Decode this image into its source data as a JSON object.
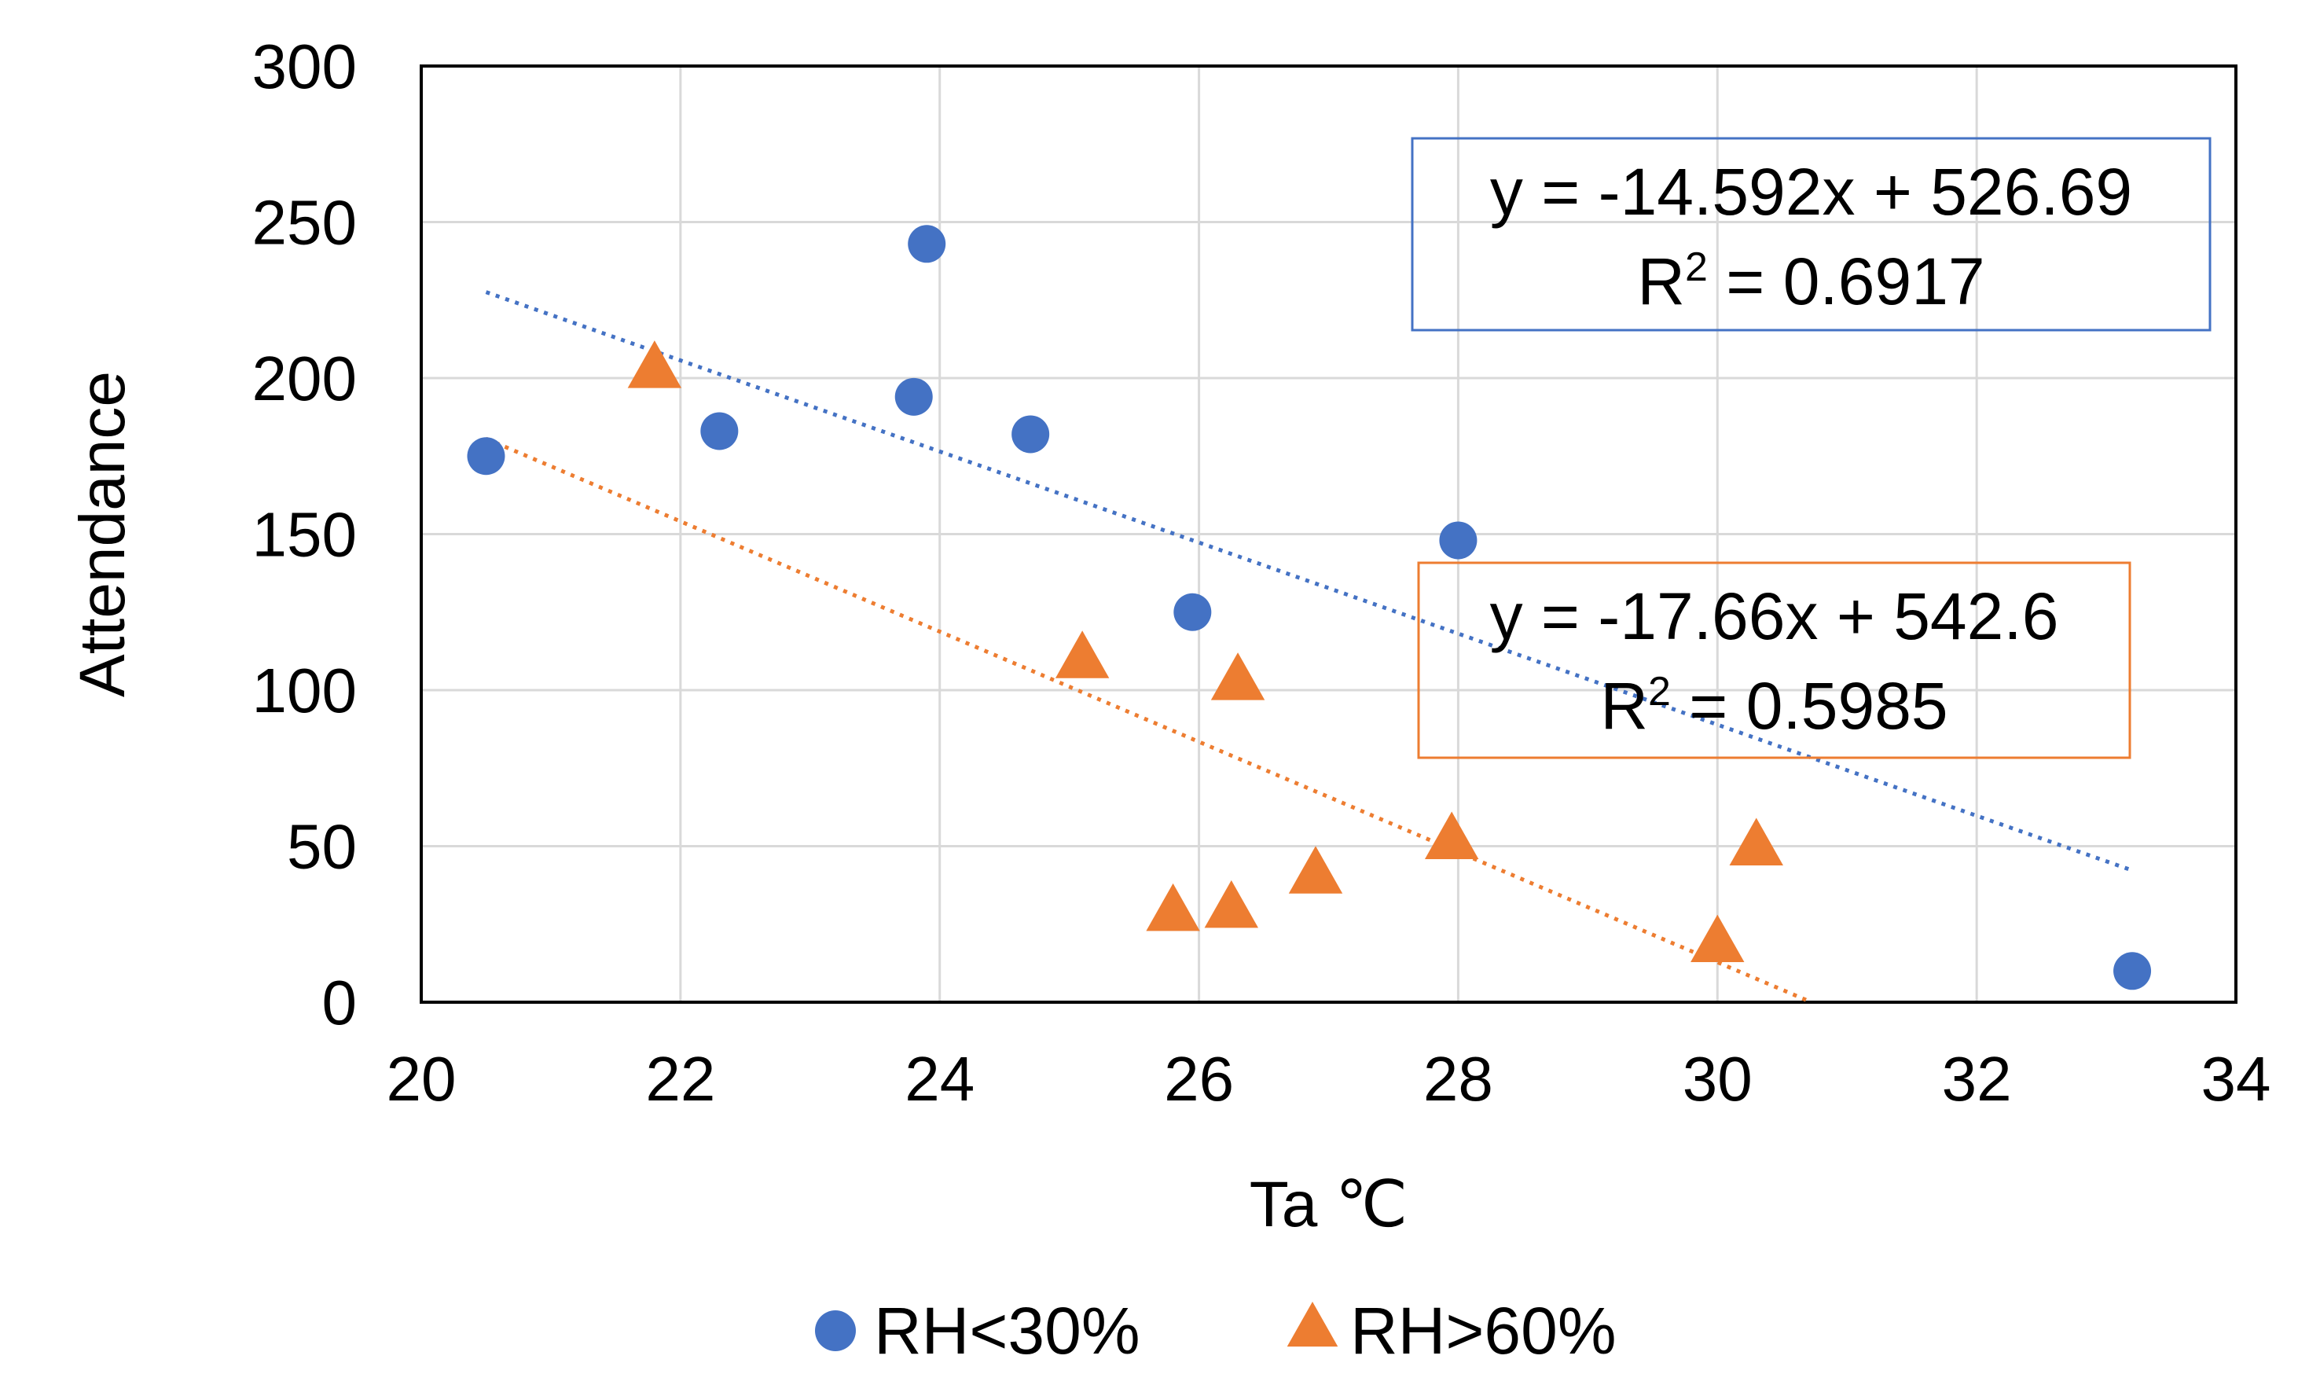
{
  "chart_data": {
    "type": "scatter",
    "xlabel": "Ta ℃",
    "ylabel": "Attendance",
    "xlim": [
      20,
      34
    ],
    "ylim": [
      0,
      300
    ],
    "xticks": [
      20,
      22,
      24,
      26,
      28,
      30,
      32,
      34
    ],
    "yticks": [
      0,
      50,
      100,
      150,
      200,
      250,
      300
    ],
    "grid": true,
    "legend_position": "bottom",
    "series": [
      {
        "name": "RH<30%",
        "marker": "circle",
        "color": "#4472C4",
        "points": [
          {
            "x": 20.5,
            "y": 175
          },
          {
            "x": 22.3,
            "y": 183
          },
          {
            "x": 23.8,
            "y": 194
          },
          {
            "x": 23.9,
            "y": 243
          },
          {
            "x": 24.7,
            "y": 182
          },
          {
            "x": 25.95,
            "y": 125
          },
          {
            "x": 28.0,
            "y": 148
          },
          {
            "x": 33.2,
            "y": 10
          }
        ],
        "trendline": {
          "slope": -14.592,
          "intercept": 526.69,
          "x_range": [
            20.5,
            33.2
          ],
          "equation": "y = -14.592x + 526.69",
          "r2_label": "R",
          "r2_exp": "2",
          "r2_value": " = 0.6917"
        }
      },
      {
        "name": "RH>60%",
        "marker": "triangle",
        "color": "#ED7D31",
        "points": [
          {
            "x": 21.8,
            "y": 203
          },
          {
            "x": 25.1,
            "y": 110
          },
          {
            "x": 25.8,
            "y": 29
          },
          {
            "x": 26.25,
            "y": 30
          },
          {
            "x": 26.3,
            "y": 103
          },
          {
            "x": 26.9,
            "y": 41
          },
          {
            "x": 27.95,
            "y": 52
          },
          {
            "x": 30.0,
            "y": 19
          },
          {
            "x": 30.3,
            "y": 50
          }
        ],
        "trendline": {
          "slope": -17.66,
          "intercept": 542.6,
          "x_range": [
            20.5,
            30.725
          ],
          "equation": "y = -17.66x + 542.6",
          "r2_label": "R",
          "r2_exp": "2",
          "r2_value": " = 0.5985"
        }
      }
    ]
  }
}
